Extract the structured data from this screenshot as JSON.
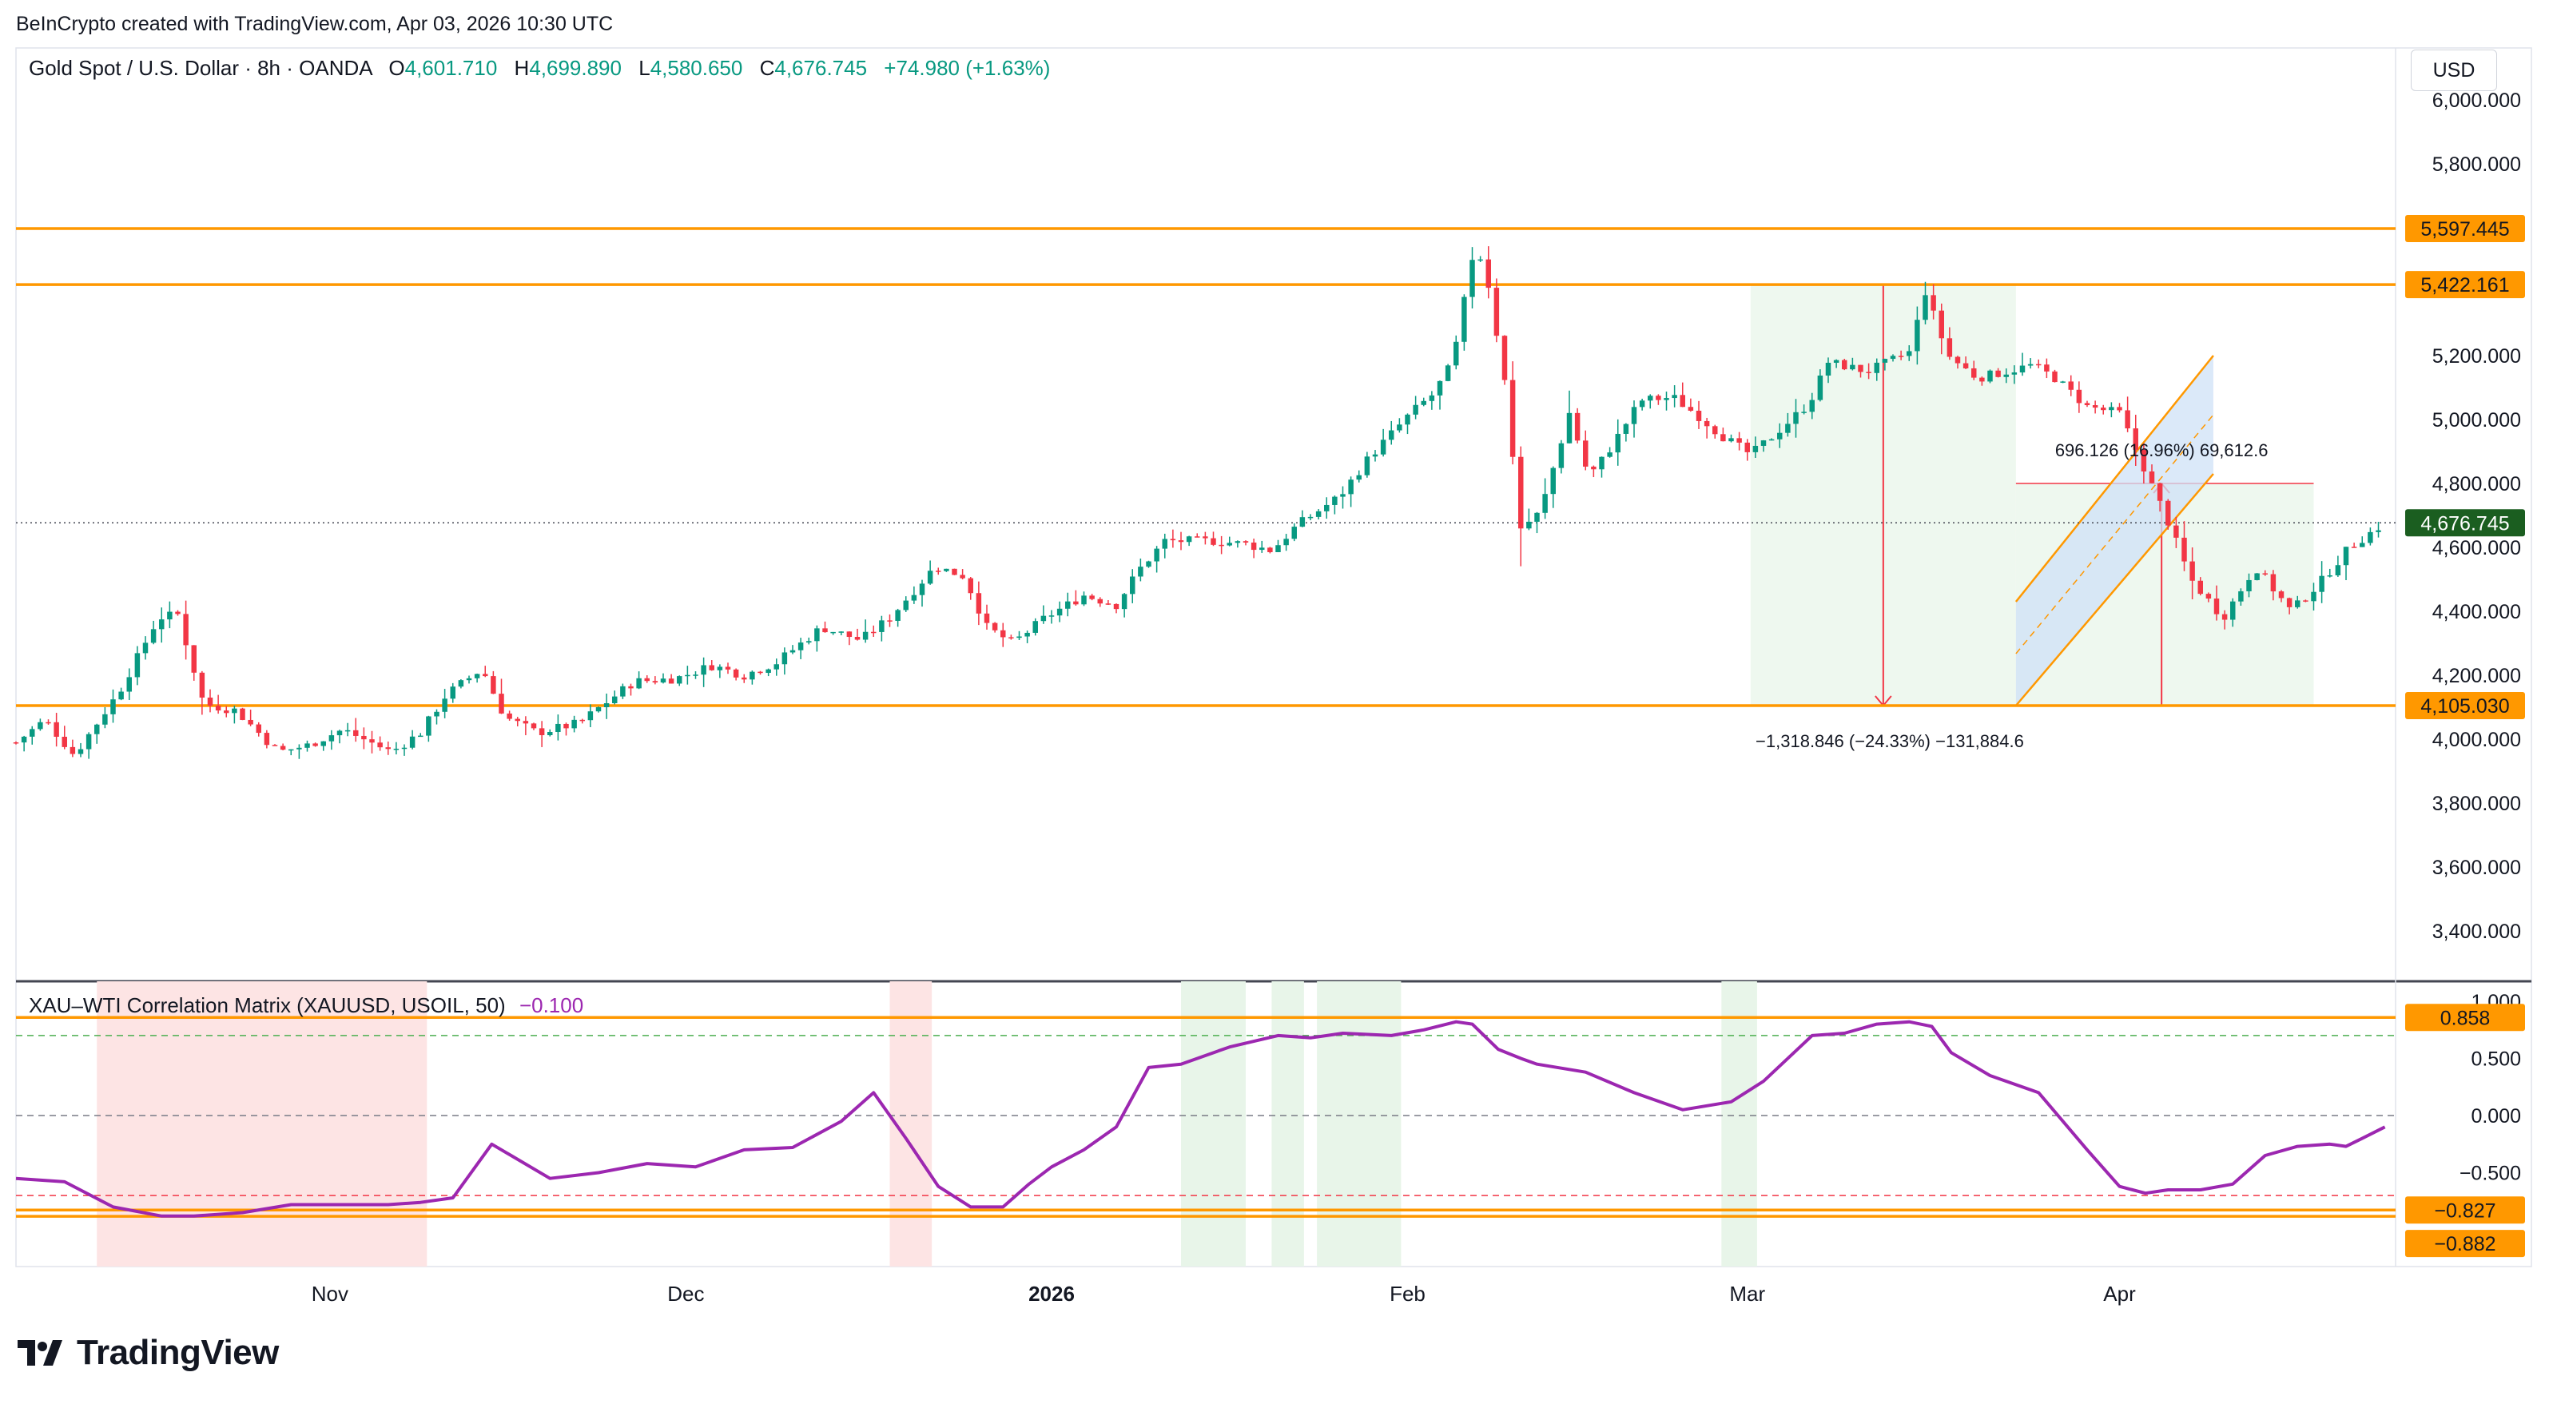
{
  "attribution": "BeInCrypto created with TradingView.com, Apr 03, 2026 10:30 UTC",
  "brand": {
    "name": "TradingView",
    "logo_icon": "tradingview-logo-icon"
  },
  "colors": {
    "up": "#089981",
    "down": "#f23645",
    "level": "#ff9800",
    "indicator": "#9c27b0",
    "last_price_bg": "#1b5e20",
    "channel_fill": "#cfe2f7",
    "green_zone": "#e8f5e9",
    "red_zone": "#fde4e4"
  },
  "header": {
    "symbol": "Gold Spot / U.S. Dollar · 8h · OANDA",
    "open_label": "O",
    "open": "4,601.710",
    "high_label": "H",
    "high": "4,699.890",
    "low_label": "L",
    "low": "4,580.650",
    "close_label": "C",
    "close": "4,676.745",
    "change": "+74.980 (+1.63%)",
    "currency": "USD"
  },
  "indicator": {
    "title": "XAU–WTI Correlation Matrix (XAUUSD, USOIL, 50)",
    "value": "−0.100"
  },
  "annotations": {
    "drop_measure": "−1,318.846 (−24.33%) −131,884.6",
    "rise_measure": "696.126 (16.96%) 69,612.6"
  },
  "chart_data": [
    {
      "type": "candlestick",
      "title": "Gold Spot / U.S. Dollar · 8h · OANDA",
      "x_axis_labels": [
        "Nov",
        "Dec",
        "2026",
        "Feb",
        "Mar",
        "Apr"
      ],
      "y_tick_labels": [
        "6,000.000",
        "5,800.000",
        "5,200.000",
        "5,000.000",
        "4,800.000",
        "4,600.000",
        "4,400.000",
        "4,200.000",
        "4,000.000",
        "3,800.000",
        "3,600.000",
        "3,400.000"
      ],
      "y_ticks": [
        6000,
        5800,
        5200,
        5000,
        4800,
        4600,
        4400,
        4200,
        4000,
        3800,
        3600,
        3400
      ],
      "ylim": [
        3300,
        6050
      ],
      "horizontal_levels": [
        {
          "label": "5,597.445",
          "value": 5597.445
        },
        {
          "label": "5,422.161",
          "value": 5422.161
        },
        {
          "label": "4,105.030",
          "value": 4105.03
        }
      ],
      "last_price": {
        "label": "4,676.745",
        "value": 4676.745
      },
      "price_path": [
        [
          0,
          3990
        ],
        [
          0.9,
          4060
        ],
        [
          1.8,
          3950
        ],
        [
          3.2,
          4150
        ],
        [
          4.4,
          4380
        ],
        [
          5.0,
          4390
        ],
        [
          5.8,
          4110
        ],
        [
          6.8,
          4090
        ],
        [
          8.1,
          3960
        ],
        [
          9.0,
          3980
        ],
        [
          10.1,
          4030
        ],
        [
          11.6,
          3960
        ],
        [
          12.5,
          4020
        ],
        [
          13.3,
          4140
        ],
        [
          14.4,
          4220
        ],
        [
          15.1,
          4070
        ],
        [
          16.1,
          4020
        ],
        [
          17.4,
          4050
        ],
        [
          18.3,
          4120
        ],
        [
          19.1,
          4180
        ],
        [
          20.4,
          4190
        ],
        [
          21.5,
          4230
        ],
        [
          22.5,
          4200
        ],
        [
          23.5,
          4240
        ],
        [
          24.9,
          4350
        ],
        [
          26.1,
          4310
        ],
        [
          27.0,
          4380
        ],
        [
          28.4,
          4540
        ],
        [
          29.3,
          4510
        ],
        [
          30.0,
          4350
        ],
        [
          30.8,
          4300
        ],
        [
          31.8,
          4380
        ],
        [
          33.0,
          4450
        ],
        [
          34.0,
          4420
        ],
        [
          34.7,
          4530
        ],
        [
          35.5,
          4620
        ],
        [
          37.0,
          4620
        ],
        [
          38.0,
          4610
        ],
        [
          38.8,
          4590
        ],
        [
          39.6,
          4670
        ],
        [
          40.9,
          4760
        ],
        [
          41.8,
          4880
        ],
        [
          43.1,
          5020
        ],
        [
          43.8,
          5080
        ],
        [
          44.4,
          5180
        ],
        [
          45.1,
          5560
        ],
        [
          45.5,
          5420
        ],
        [
          46.0,
          5120
        ],
        [
          46.5,
          4660
        ],
        [
          47.1,
          4710
        ],
        [
          48.0,
          5020
        ],
        [
          48.6,
          4820
        ],
        [
          49.2,
          4900
        ],
        [
          50.2,
          5060
        ],
        [
          51.2,
          5070
        ],
        [
          52.0,
          5010
        ],
        [
          52.7,
          4950
        ],
        [
          53.6,
          4890
        ],
        [
          54.3,
          4950
        ],
        [
          55.4,
          5050
        ],
        [
          56.0,
          5180
        ],
        [
          57.2,
          5150
        ],
        [
          58.5,
          5210
        ],
        [
          59.0,
          5400
        ],
        [
          59.7,
          5200
        ],
        [
          60.6,
          5130
        ],
        [
          61.5,
          5150
        ],
        [
          62.3,
          5170
        ],
        [
          63.0,
          5130
        ],
        [
          64.0,
          5040
        ],
        [
          65.0,
          5020
        ],
        [
          66.5,
          4680
        ],
        [
          67.2,
          4500
        ],
        [
          68.2,
          4380
        ],
        [
          69.2,
          4540
        ],
        [
          70.3,
          4400
        ],
        [
          71.2,
          4490
        ],
        [
          72.1,
          4600
        ],
        [
          73.2,
          4676.745
        ]
      ]
    },
    {
      "type": "line",
      "title": "XAU–WTI Correlation Matrix (XAUUSD, USOIL, 50)",
      "series": [
        {
          "name": "XAUUSD, USOIL",
          "x": [
            0,
            1.5,
            3.0,
            4.5,
            5.5,
            7.0,
            8.5,
            10.0,
            11.5,
            12.5,
            13.5,
            14.7,
            15.3,
            16.5,
            18.0,
            19.5,
            21.0,
            22.5,
            24.0,
            25.5,
            26.5,
            27.5,
            28.5,
            29.5,
            30.5,
            31.3,
            32.0,
            33.0,
            34.0,
            35.0,
            36.0,
            37.5,
            39.0,
            40.0,
            41.0,
            42.5,
            43.5,
            44.5,
            45.0,
            45.8,
            46.5,
            47.0,
            48.5,
            50.0,
            51.5,
            53.0,
            54.0,
            55.5,
            56.5,
            57.5,
            58.5,
            59.2,
            59.8,
            61.0,
            62.5,
            64.0,
            65.0,
            65.8,
            66.5,
            67.5,
            68.5,
            69.5,
            70.5,
            71.5,
            72.0,
            72.5,
            73.2
          ],
          "y": [
            -0.55,
            -0.58,
            -0.8,
            -0.88,
            -0.88,
            -0.85,
            -0.78,
            -0.78,
            -0.78,
            -0.76,
            -0.72,
            -0.25,
            -0.35,
            -0.55,
            -0.5,
            -0.42,
            -0.45,
            -0.3,
            -0.28,
            -0.05,
            0.2,
            -0.2,
            -0.62,
            -0.8,
            -0.8,
            -0.6,
            -0.45,
            -0.3,
            -0.1,
            0.42,
            0.45,
            0.6,
            0.7,
            0.68,
            0.72,
            0.7,
            0.75,
            0.82,
            0.8,
            0.58,
            0.5,
            0.45,
            0.38,
            0.2,
            0.05,
            0.12,
            0.3,
            0.7,
            0.72,
            0.8,
            0.82,
            0.78,
            0.55,
            0.35,
            0.2,
            -0.3,
            -0.62,
            -0.68,
            -0.65,
            -0.65,
            -0.6,
            -0.35,
            -0.27,
            -0.25,
            -0.27,
            -0.2,
            -0.1
          ]
        }
      ],
      "y_tick_labels": [
        "1.000",
        "0.500",
        "0.000",
        "−0.500"
      ],
      "y_ticks": [
        1.0,
        0.5,
        0.0,
        -0.5
      ],
      "ylim": [
        -1.15,
        1.3
      ],
      "horizontal_levels": [
        {
          "label": "0.858",
          "value": 0.858
        },
        {
          "label": "−0.827",
          "value": -0.827
        },
        {
          "label": "−0.882",
          "value": -0.882
        }
      ],
      "dashed_levels": [
        0.7,
        0.0,
        -0.7
      ],
      "red_zones": [
        [
          2.5,
          12.7
        ],
        [
          27.0,
          28.3
        ]
      ],
      "green_zones": [
        [
          36.0,
          38.0
        ],
        [
          38.8,
          39.8
        ],
        [
          40.2,
          42.8
        ],
        [
          52.7,
          53.8
        ]
      ]
    }
  ],
  "x_axis": {
    "labels": [
      {
        "text": "Nov",
        "bar": 9.7,
        "bold": false
      },
      {
        "text": "Dec",
        "bar": 20.7,
        "bold": false
      },
      {
        "text": "2026",
        "bar": 32.0,
        "bold": true
      },
      {
        "text": "Feb",
        "bar": 43.0,
        "bold": false
      },
      {
        "text": "Mar",
        "bar": 53.5,
        "bold": false
      },
      {
        "text": "Apr",
        "bar": 65.0,
        "bold": false
      }
    ]
  }
}
